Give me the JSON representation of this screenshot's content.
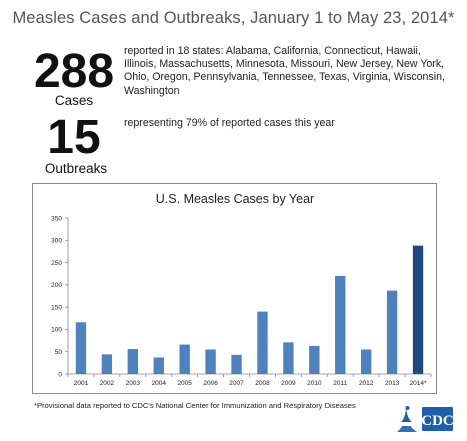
{
  "header": {
    "title": "Measles Cases and Outbreaks, January 1 to May 23, 2014*"
  },
  "stats": {
    "cases_number": "288",
    "cases_label": "Cases",
    "cases_text": "reported in 18 states: Alabama, California, Connecticut, Hawaii, Illinois, Massachusetts, Minnesota, Missouri, New Jersey, New York, Ohio, Oregon, Pennsylvania, Tennessee, Texas, Virginia, Wisconsin, Washington",
    "outbreaks_number": "15",
    "outbreaks_label": "Outbreaks",
    "outbreaks_text": "representing 79% of reported cases this year"
  },
  "chart_data": {
    "type": "bar",
    "title": "U.S. Measles Cases by Year",
    "categories": [
      "2001",
      "2002",
      "2003",
      "2004",
      "2005",
      "2006",
      "2007",
      "2008",
      "2009",
      "2010",
      "2011",
      "2012",
      "2013",
      "2014*"
    ],
    "values": [
      116,
      44,
      56,
      37,
      66,
      55,
      43,
      140,
      71,
      63,
      220,
      55,
      187,
      288
    ],
    "ylim": [
      0,
      350
    ],
    "yticks": [
      0,
      50,
      100,
      150,
      200,
      250,
      300,
      350
    ],
    "xlabel": "",
    "ylabel": "",
    "grid": false,
    "colors": {
      "bar": "#4f81bd",
      "highlight_bar": "#1f497d"
    }
  },
  "footer": {
    "footnote": "*Provisional data reported to CDC's National Center for Immunization and Respiratory Diseases",
    "logo_text": "CDC"
  }
}
